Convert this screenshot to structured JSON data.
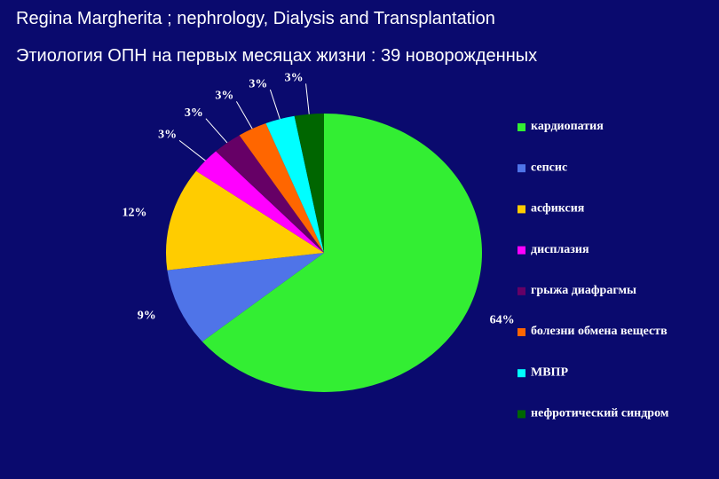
{
  "chart_data": {
    "type": "pie",
    "title": "Regina Margherita ; nephrology, Dialysis and Transplantation",
    "subtitle": "Этиология ОПН на первых месяцах жизни : 39 новорожденных",
    "categories": [
      "кардиопатия",
      "сепсис",
      "асфиксия",
      "дисплазия",
      "грыжа диафрагмы",
      "болезни обмена веществ",
      "МВПР",
      "нефротический синдром"
    ],
    "values": [
      64,
      9,
      12,
      3,
      3,
      3,
      3,
      3
    ],
    "value_labels": [
      "64%",
      "9%",
      "12%",
      "3%",
      "3%",
      "3%",
      "3%",
      "3%"
    ],
    "colors": [
      "#33ee33",
      "#4f74e8",
      "#ffcc00",
      "#ff00ff",
      "#660066",
      "#ff6600",
      "#00ffff",
      "#006600"
    ],
    "legend": "right"
  }
}
